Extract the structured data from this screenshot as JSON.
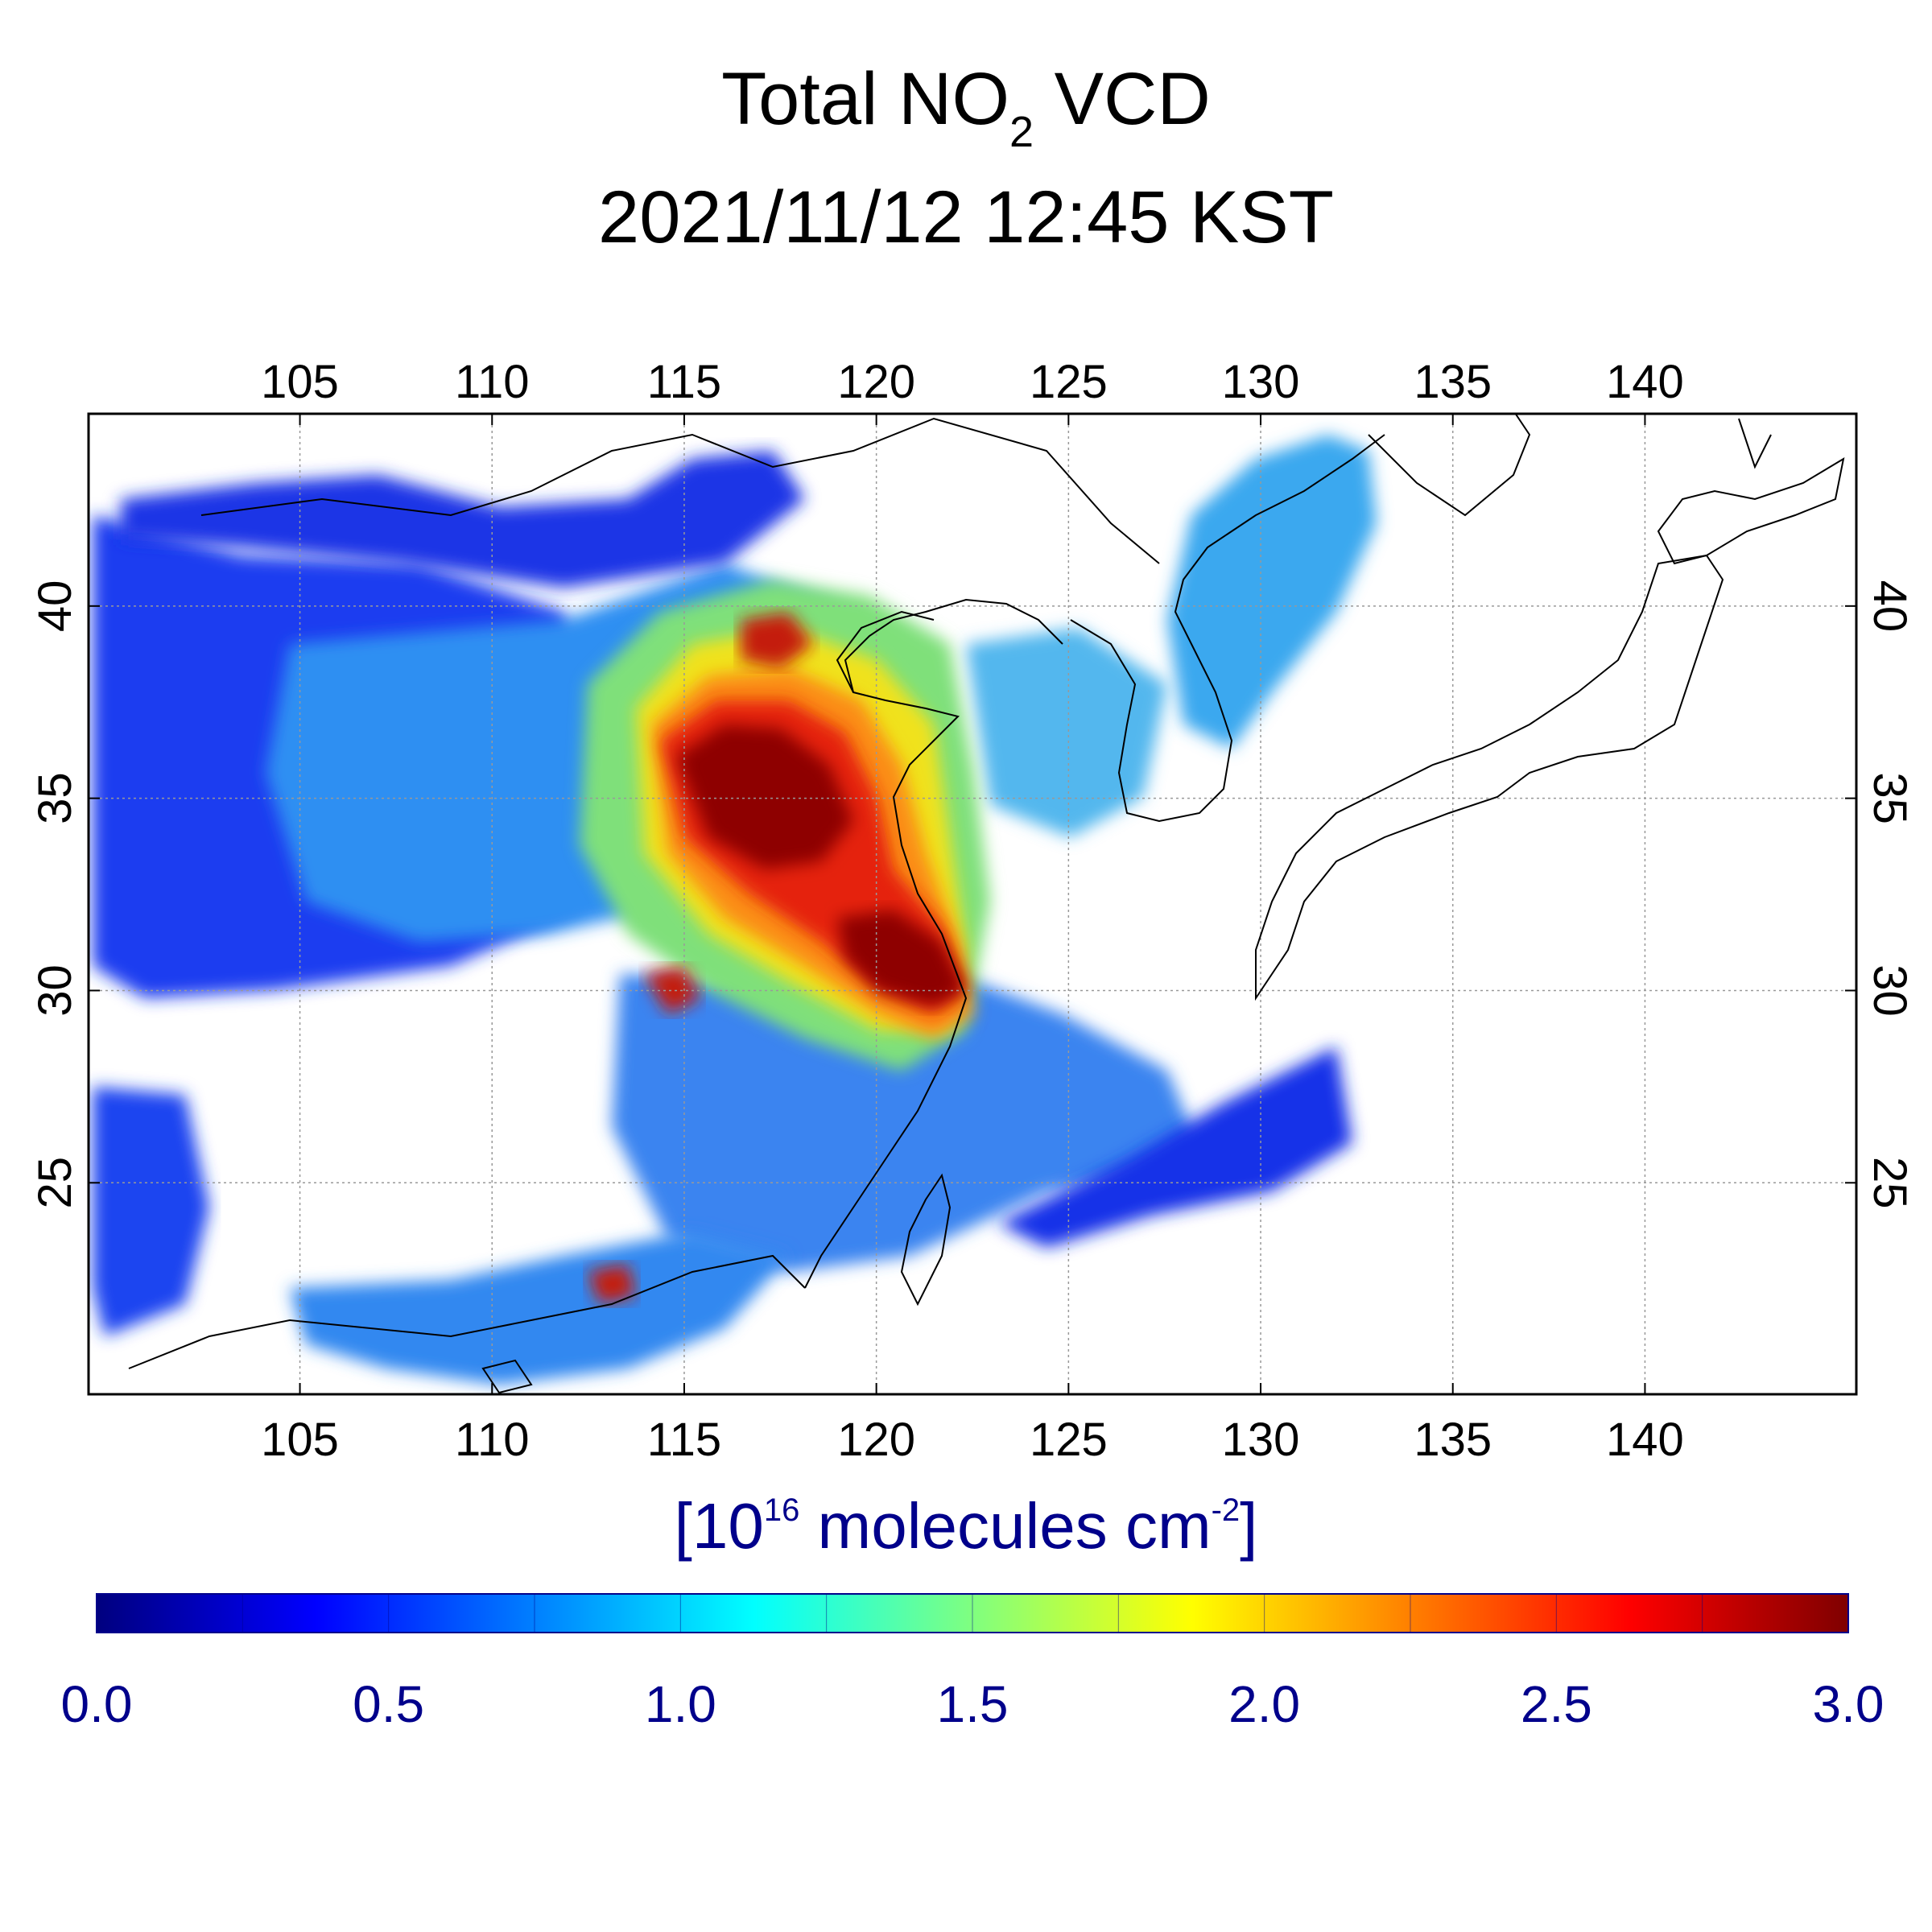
{
  "title": {
    "prefix": "Total NO",
    "subscript": "2",
    "suffix": " VCD",
    "datetime": "2021/11/12 12:45 KST"
  },
  "map": {
    "lon_range": [
      99.5,
      145.5
    ],
    "lat_range": [
      19.5,
      45.0
    ],
    "lon_ticks": [
      "105",
      "110",
      "115",
      "120",
      "125",
      "130",
      "135",
      "140"
    ],
    "lat_ticks": [
      "25",
      "30",
      "35",
      "40"
    ],
    "grid": true,
    "coastlines": true
  },
  "colorbar": {
    "unit_base": "[10",
    "unit_exp1": "16",
    "unit_mid": " molecules cm",
    "unit_exp2": "-2",
    "unit_end": "]",
    "min": 0.0,
    "max": 3.0,
    "tick_labels": [
      "0.0",
      "0.5",
      "1.0",
      "1.5",
      "2.0",
      "2.5",
      "3.0"
    ],
    "colormap": "jet",
    "text_color": "#00008b"
  }
}
